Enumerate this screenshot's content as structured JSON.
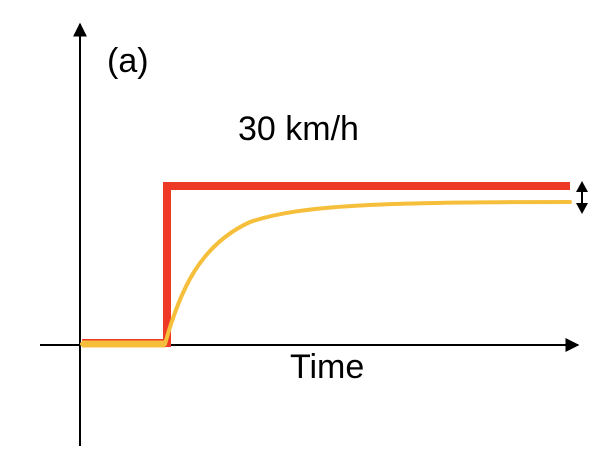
{
  "panel_label": "(a)",
  "speed_label": "30 km/h",
  "x_axis_label": "Time",
  "colors": {
    "reference": "#ee3a24",
    "response": "#f5bf3c",
    "axis": "#000000"
  },
  "icons": [
    "up-arrow-icon",
    "right-arrow-icon",
    "double-headed-arrow-icon"
  ]
}
